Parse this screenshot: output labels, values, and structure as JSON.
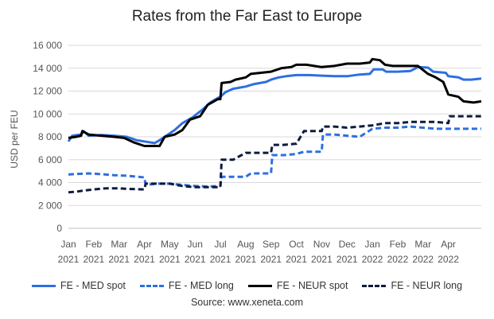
{
  "chart_data": {
    "type": "line",
    "title": "Rates from the Far East to Europe",
    "ylabel": "USD per FEU",
    "xlabel": "",
    "ylim": [
      0,
      16000
    ],
    "yticks": [
      0,
      2000,
      4000,
      6000,
      8000,
      10000,
      12000,
      14000,
      16000
    ],
    "ytick_labels": [
      "0",
      "2 000",
      "4 000",
      "6 000",
      "8 000",
      "10 000",
      "12 000",
      "14 000",
      "16 000"
    ],
    "xlim": [
      0,
      16.3
    ],
    "xticks": [
      {
        "month": "Jan",
        "year": "2021",
        "pos": 0
      },
      {
        "month": "Feb",
        "year": "2021",
        "pos": 1
      },
      {
        "month": "Mar",
        "year": "2021",
        "pos": 2
      },
      {
        "month": "Apr",
        "year": "2021",
        "pos": 3
      },
      {
        "month": "May",
        "year": "2021",
        "pos": 4
      },
      {
        "month": "Jun",
        "year": "2021",
        "pos": 5
      },
      {
        "month": "Jul",
        "year": "2021",
        "pos": 6
      },
      {
        "month": "Aug",
        "year": "2021",
        "pos": 7
      },
      {
        "month": "Sep",
        "year": "2021",
        "pos": 8
      },
      {
        "month": "Oct",
        "year": "2021",
        "pos": 9
      },
      {
        "month": "Nov",
        "year": "2021",
        "pos": 10
      },
      {
        "month": "Dec",
        "year": "2021",
        "pos": 11
      },
      {
        "month": "Jan",
        "year": "2022",
        "pos": 12
      },
      {
        "month": "Feb",
        "year": "2022",
        "pos": 13
      },
      {
        "month": "Mar",
        "year": "2022",
        "pos": 14
      },
      {
        "month": "Apr",
        "year": "2022",
        "pos": 15
      }
    ],
    "grid": "horizontal",
    "legend_position": "bottom",
    "series": [
      {
        "name": "FE - MED spot",
        "color": "#2e6fe0",
        "dash": "solid",
        "points": [
          [
            0,
            7600
          ],
          [
            0.15,
            8100
          ],
          [
            0.5,
            8200
          ],
          [
            0.6,
            8500
          ],
          [
            0.8,
            8100
          ],
          [
            1.3,
            8150
          ],
          [
            1.8,
            8100
          ],
          [
            2.3,
            8000
          ],
          [
            2.7,
            7700
          ],
          [
            3.0,
            7600
          ],
          [
            3.4,
            7450
          ],
          [
            3.6,
            7700
          ],
          [
            3.8,
            8000
          ],
          [
            4.2,
            8600
          ],
          [
            4.5,
            9200
          ],
          [
            4.9,
            9700
          ],
          [
            5.3,
            10400
          ],
          [
            5.6,
            11000
          ],
          [
            5.9,
            11400
          ],
          [
            6.0,
            11500
          ],
          [
            6.2,
            11900
          ],
          [
            6.5,
            12200
          ],
          [
            7.0,
            12400
          ],
          [
            7.3,
            12600
          ],
          [
            7.8,
            12800
          ],
          [
            8.0,
            13000
          ],
          [
            8.3,
            13200
          ],
          [
            8.6,
            13300
          ],
          [
            9.0,
            13400
          ],
          [
            9.5,
            13400
          ],
          [
            10.0,
            13350
          ],
          [
            10.5,
            13300
          ],
          [
            11.0,
            13300
          ],
          [
            11.5,
            13450
          ],
          [
            11.9,
            13500
          ],
          [
            12.05,
            13900
          ],
          [
            12.4,
            13900
          ],
          [
            12.55,
            13700
          ],
          [
            13.0,
            13700
          ],
          [
            13.5,
            13750
          ],
          [
            13.8,
            14100
          ],
          [
            14.2,
            14050
          ],
          [
            14.4,
            13700
          ],
          [
            14.9,
            13600
          ],
          [
            15.0,
            13300
          ],
          [
            15.4,
            13200
          ],
          [
            15.6,
            13000
          ],
          [
            15.9,
            13000
          ],
          [
            16.3,
            13100
          ]
        ]
      },
      {
        "name": "FE - MED long",
        "color": "#2e6fe0",
        "dash": "dash",
        "points": [
          [
            0,
            4700
          ],
          [
            0.3,
            4750
          ],
          [
            0.8,
            4800
          ],
          [
            1.2,
            4750
          ],
          [
            1.8,
            4650
          ],
          [
            2.3,
            4600
          ],
          [
            3.0,
            4450
          ],
          [
            3.05,
            3800
          ],
          [
            3.5,
            3900
          ],
          [
            4.0,
            3900
          ],
          [
            4.5,
            3800
          ],
          [
            5.0,
            3700
          ],
          [
            5.5,
            3650
          ],
          [
            6.0,
            3700
          ],
          [
            6.05,
            4500
          ],
          [
            6.5,
            4500
          ],
          [
            7.0,
            4500
          ],
          [
            7.2,
            4800
          ],
          [
            7.8,
            4800
          ],
          [
            8.0,
            4800
          ],
          [
            8.05,
            6400
          ],
          [
            8.5,
            6400
          ],
          [
            9.0,
            6500
          ],
          [
            9.3,
            6700
          ],
          [
            10.0,
            6700
          ],
          [
            10.05,
            8200
          ],
          [
            10.5,
            8200
          ],
          [
            11.0,
            8100
          ],
          [
            11.5,
            8000
          ],
          [
            12.0,
            8700
          ],
          [
            12.5,
            8800
          ],
          [
            13.0,
            8800
          ],
          [
            13.5,
            8900
          ],
          [
            14.0,
            8800
          ],
          [
            14.5,
            8700
          ],
          [
            15.0,
            8700
          ],
          [
            15.5,
            8700
          ],
          [
            16.3,
            8700
          ]
        ]
      },
      {
        "name": "FE - NEUR spot",
        "color": "#000000",
        "dash": "solid",
        "points": [
          [
            0,
            7900
          ],
          [
            0.3,
            8000
          ],
          [
            0.5,
            8100
          ],
          [
            0.55,
            8500
          ],
          [
            0.8,
            8200
          ],
          [
            1.3,
            8100
          ],
          [
            1.8,
            8000
          ],
          [
            2.2,
            7900
          ],
          [
            2.6,
            7500
          ],
          [
            3.0,
            7200
          ],
          [
            3.6,
            7200
          ],
          [
            3.8,
            8000
          ],
          [
            4.2,
            8200
          ],
          [
            4.5,
            8600
          ],
          [
            4.8,
            9500
          ],
          [
            5.2,
            9800
          ],
          [
            5.5,
            10800
          ],
          [
            5.9,
            11300
          ],
          [
            6.0,
            11300
          ],
          [
            6.05,
            12700
          ],
          [
            6.4,
            12800
          ],
          [
            6.6,
            13000
          ],
          [
            7.0,
            13200
          ],
          [
            7.2,
            13500
          ],
          [
            7.6,
            13600
          ],
          [
            8.0,
            13700
          ],
          [
            8.4,
            14000
          ],
          [
            8.8,
            14100
          ],
          [
            9.0,
            14300
          ],
          [
            9.4,
            14300
          ],
          [
            9.7,
            14200
          ],
          [
            10.0,
            14100
          ],
          [
            10.5,
            14200
          ],
          [
            11.0,
            14400
          ],
          [
            11.5,
            14400
          ],
          [
            11.9,
            14500
          ],
          [
            12.0,
            14800
          ],
          [
            12.3,
            14700
          ],
          [
            12.5,
            14300
          ],
          [
            12.8,
            14200
          ],
          [
            13.3,
            14200
          ],
          [
            13.8,
            14200
          ],
          [
            14.2,
            13500
          ],
          [
            14.5,
            13200
          ],
          [
            14.8,
            12800
          ],
          [
            15.0,
            11700
          ],
          [
            15.4,
            11500
          ],
          [
            15.6,
            11100
          ],
          [
            16.0,
            11000
          ],
          [
            16.3,
            11100
          ]
        ]
      },
      {
        "name": "FE - NEUR long",
        "color": "#0d1b3e",
        "dash": "dash",
        "points": [
          [
            0,
            3150
          ],
          [
            0.3,
            3200
          ],
          [
            0.6,
            3300
          ],
          [
            1.0,
            3400
          ],
          [
            1.5,
            3500
          ],
          [
            2.0,
            3500
          ],
          [
            2.3,
            3450
          ],
          [
            3.0,
            3400
          ],
          [
            3.05,
            3900
          ],
          [
            3.5,
            3900
          ],
          [
            4.0,
            3900
          ],
          [
            4.5,
            3700
          ],
          [
            5.0,
            3600
          ],
          [
            5.5,
            3600
          ],
          [
            6.0,
            3600
          ],
          [
            6.05,
            6000
          ],
          [
            6.5,
            6000
          ],
          [
            7.0,
            6600
          ],
          [
            7.5,
            6600
          ],
          [
            8.0,
            6600
          ],
          [
            8.05,
            7300
          ],
          [
            8.5,
            7300
          ],
          [
            9.0,
            7400
          ],
          [
            9.3,
            8500
          ],
          [
            9.8,
            8500
          ],
          [
            10.0,
            8500
          ],
          [
            10.05,
            8900
          ],
          [
            10.5,
            8900
          ],
          [
            11.0,
            8800
          ],
          [
            11.5,
            8900
          ],
          [
            12.0,
            9000
          ],
          [
            12.5,
            9200
          ],
          [
            13.0,
            9200
          ],
          [
            13.5,
            9300
          ],
          [
            14.0,
            9300
          ],
          [
            14.5,
            9300
          ],
          [
            15.0,
            9200
          ],
          [
            15.05,
            9800
          ],
          [
            15.5,
            9800
          ],
          [
            16.3,
            9800
          ]
        ]
      }
    ]
  },
  "source": "Source: www.xeneta.com"
}
